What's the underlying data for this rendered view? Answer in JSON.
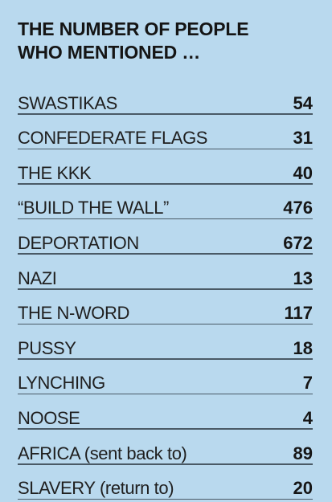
{
  "chart_data": {
    "type": "table",
    "title_lines": [
      "THE NUMBER OF PEOPLE",
      "WHO MENTIONED …"
    ],
    "rows": [
      {
        "label": "SWASTIKAS",
        "value": "54"
      },
      {
        "label": "CONFEDERATE FLAGS",
        "value": "31"
      },
      {
        "label": "THE KKK",
        "value": "40"
      },
      {
        "label": "“BUILD THE WALL”",
        "value": "476"
      },
      {
        "label": "DEPORTATION",
        "value": "672"
      },
      {
        "label": "NAZI",
        "value": "13"
      },
      {
        "label": "THE N-WORD",
        "value": "117"
      },
      {
        "label": "PUSSY",
        "value": "18"
      },
      {
        "label": "LYNCHING",
        "value": "7"
      },
      {
        "label": "NOOSE",
        "value": "4"
      },
      {
        "label": "AFRICA (sent back to)",
        "value": "89"
      },
      {
        "label": "SLAVERY (return to)",
        "value": "20"
      }
    ]
  },
  "colors": {
    "background": "#b9d9ee",
    "text": "#1c1c1c",
    "rule": "#4a5a66"
  }
}
